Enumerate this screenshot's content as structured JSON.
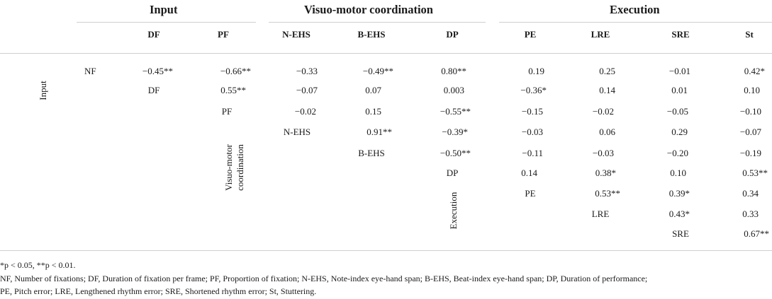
{
  "groups": {
    "input": "Input",
    "visuomotor": "Visuo-motor coordination",
    "execution": "Execution"
  },
  "columns": [
    "DF",
    "PF",
    "N-EHS",
    "B-EHS",
    "DP",
    "PE",
    "LRE",
    "SRE",
    "St"
  ],
  "rows": [
    {
      "label": "NF",
      "values": [
        "−0.45**",
        "−0.66**",
        "−0.33",
        "−0.49**",
        "0.80**",
        "0.19",
        "0.25",
        "−0.01",
        "0.42*"
      ]
    },
    {
      "label": "DF",
      "values": [
        "0.55**",
        "−0.07",
        "0.07",
        "0.003",
        "−0.36*",
        "0.14",
        "0.01",
        "0.10"
      ]
    },
    {
      "label": "PF",
      "values": [
        "−0.02",
        "0.15",
        "−0.55**",
        "−0.15",
        "−0.02",
        "−0.05",
        "−0.10"
      ]
    },
    {
      "label": "N-EHS",
      "values": [
        "0.91**",
        "−0.39*",
        "−0.03",
        "0.06",
        "0.29",
        "−0.07"
      ]
    },
    {
      "label": "B-EHS",
      "values": [
        "−0.50**",
        "−0.11",
        "−0.03",
        "−0.20",
        "−0.19"
      ]
    },
    {
      "label": "DP",
      "values": [
        "0.14",
        "0.38*",
        "0.10",
        "0.53**"
      ]
    },
    {
      "label": "PE",
      "values": [
        "0.53**",
        "0.39*",
        "0.34"
      ]
    },
    {
      "label": "LRE",
      "values": [
        "0.43*",
        "0.33"
      ]
    },
    {
      "label": "SRE",
      "values": [
        "0.67**"
      ]
    }
  ],
  "side_labels": {
    "input": "Input",
    "visuomotor_line1": "Visuo-motor",
    "visuomotor_line2": "coordination",
    "execution": "Execution"
  },
  "footnotes": {
    "significance": "*p < 0.05, **p < 0.01.",
    "abbrev_line1": "NF, Number of fixations; DF, Duration of fixation per frame; PF, Proportion of fixation; N-EHS, Note-index eye-hand span; B-EHS, Beat-index eye-hand span; DP, Duration of performance;",
    "abbrev_line2": "PE, Pitch error; LRE, Lengthened rhythm error; SRE, Shortened rhythm error; St, Stuttering."
  }
}
